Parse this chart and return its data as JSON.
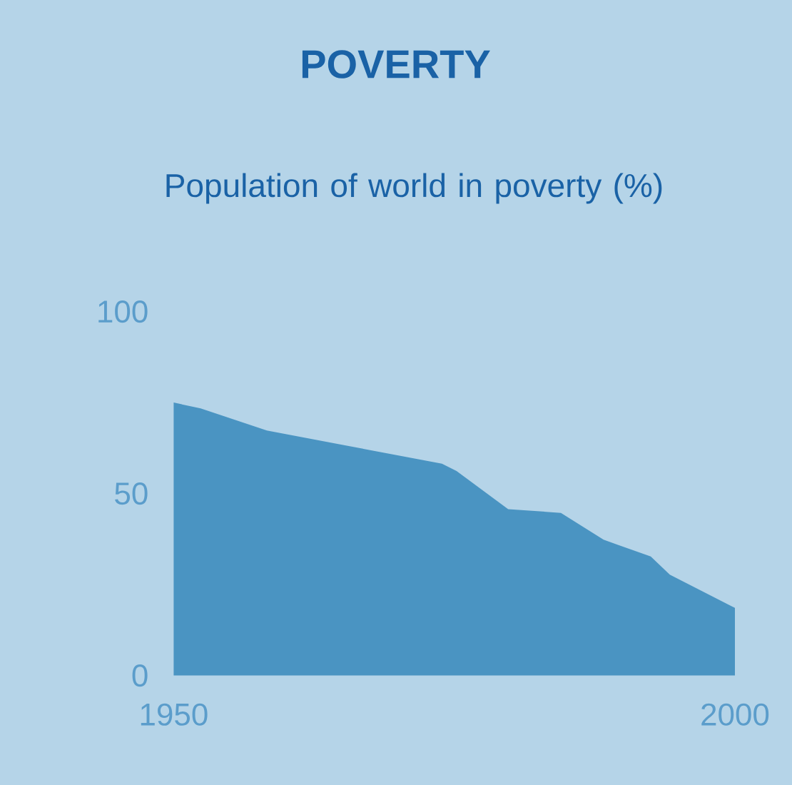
{
  "chart_data": {
    "type": "area",
    "title": "POVERTY",
    "subtitle": "Population of world in poverty (%)",
    "x": [
      1950,
      1952.4,
      1958.3,
      1965,
      1973.9,
      1975.2,
      1979.8,
      1984.5,
      1988.3,
      1992.5,
      1994.2,
      1999.8,
      2000
    ],
    "values": [
      75,
      73.4,
      67.3,
      63.4,
      58.2,
      56.2,
      45.7,
      44.7,
      37.3,
      32.7,
      27.7,
      18.9,
      18.6
    ],
    "color": "#4a94c2",
    "xlim": [
      1950,
      2000
    ],
    "ylim": [
      0,
      100
    ],
    "xticks": [
      1950,
      2000
    ],
    "yticks": [
      0,
      50,
      100
    ]
  }
}
